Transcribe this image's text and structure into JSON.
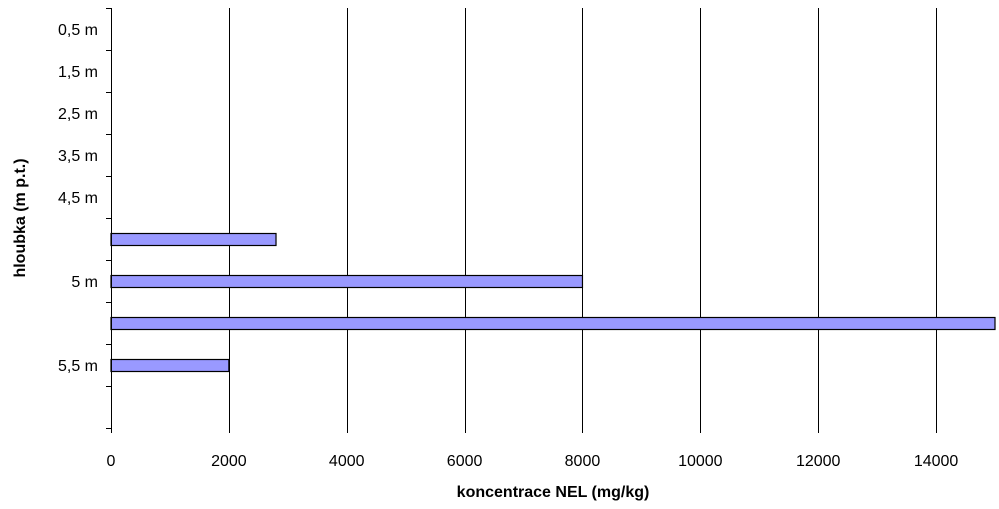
{
  "chart_data": {
    "type": "bar",
    "orientation": "horizontal",
    "categories": [
      "0,5 m",
      "1,5 m",
      "2,5 m",
      "3,5 m",
      "4,5 m",
      "",
      "5 m",
      "",
      "5,5 m",
      ""
    ],
    "values": [
      null,
      null,
      null,
      null,
      null,
      2800,
      8000,
      15000,
      2000,
      null
    ],
    "xlabel": "koncentrace NEL (mg/kg)",
    "ylabel": "hloubka (m p.t.)",
    "xlim": [
      0,
      15000
    ],
    "xticks": [
      0,
      2000,
      4000,
      6000,
      8000,
      10000,
      12000,
      14000
    ],
    "grid": "vertical",
    "legend": "none",
    "colors": {
      "bar_fill": "#9999ff",
      "bar_stroke": "#000000",
      "grid": "#000000",
      "axis": "#000000",
      "background": "#ffffff"
    }
  }
}
